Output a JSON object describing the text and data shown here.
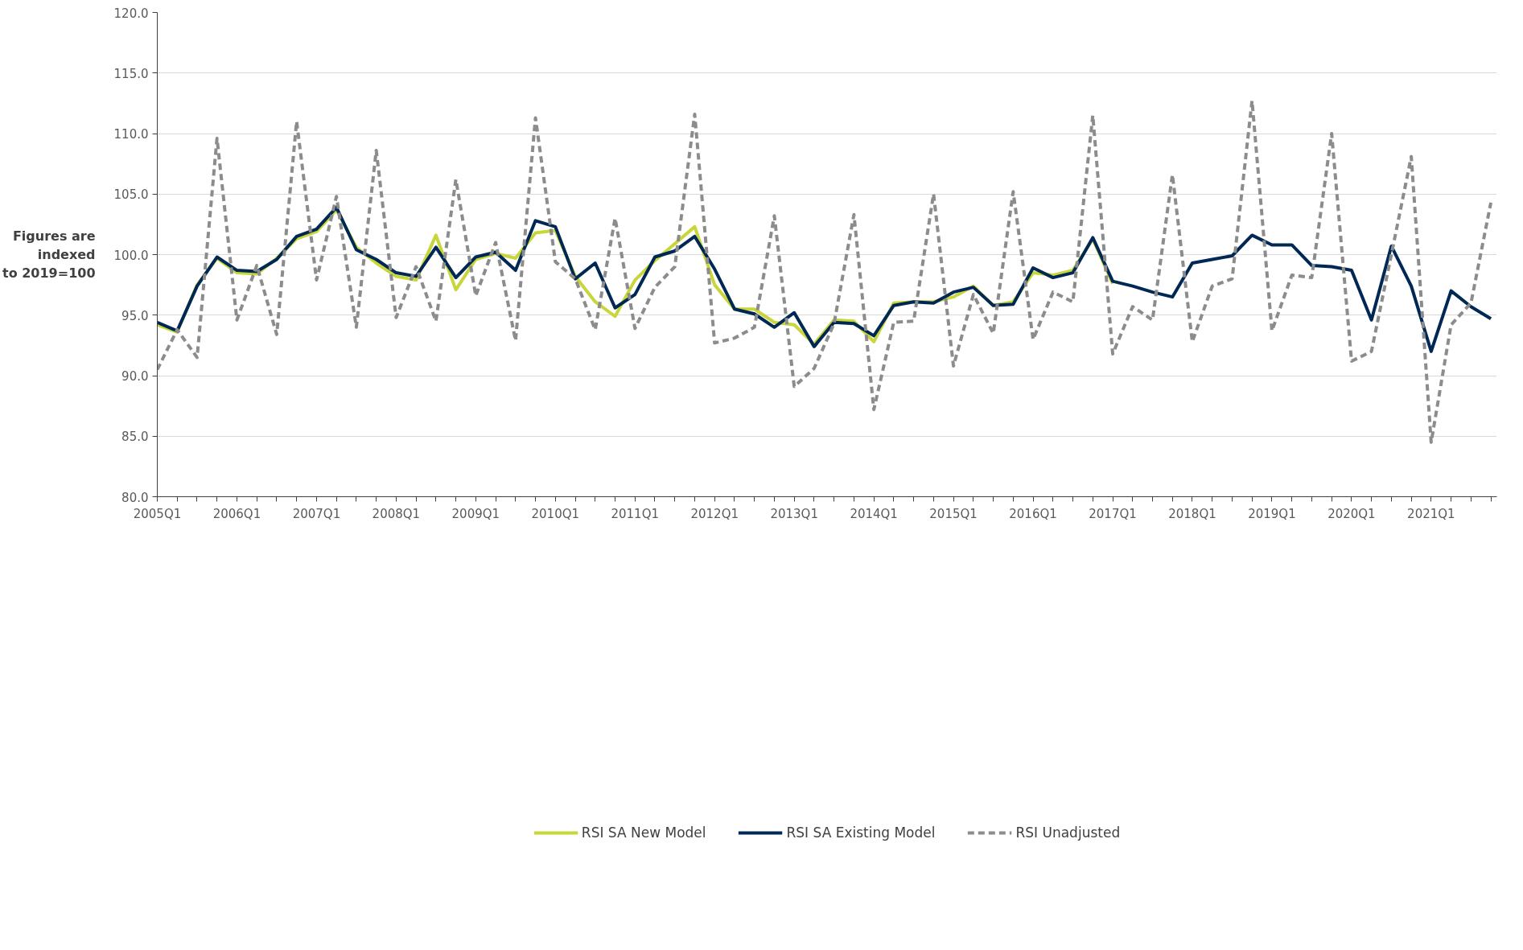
{
  "chart_data": {
    "type": "line",
    "ylabel": "Figures are\nindexed\nto 2019=100",
    "categories": [
      "2005Q1",
      null,
      null,
      null,
      "2006Q1",
      null,
      null,
      null,
      "2007Q1",
      null,
      null,
      null,
      "2008Q1",
      null,
      null,
      null,
      "2009Q1",
      null,
      null,
      null,
      "2010Q1",
      null,
      null,
      null,
      "2011Q1",
      null,
      null,
      null,
      "2012Q1",
      null,
      null,
      null,
      "2013Q1",
      null,
      null,
      null,
      "2014Q1",
      null,
      null,
      null,
      "2015Q1",
      null,
      null,
      null,
      "2016Q1",
      null,
      null,
      null,
      "2017Q1",
      null,
      null,
      null,
      "2018Q1",
      null,
      null,
      null,
      "2019Q1",
      null,
      null,
      null,
      "2020Q1",
      null,
      null,
      null,
      "2021Q1",
      null,
      null,
      null
    ],
    "series": [
      {
        "name": "RSI SA New Model",
        "color": "#c8d63a",
        "line_style": "solid",
        "values": [
          94.2,
          93.6,
          97.5,
          99.7,
          98.5,
          98.4,
          99.7,
          101.3,
          101.9,
          103.7,
          100.6,
          99.3,
          98.2,
          97.9,
          101.6,
          97.1,
          99.6,
          100.1,
          99.7,
          101.8,
          102.0,
          98.2,
          96.1,
          94.9,
          97.9,
          99.5,
          100.9,
          102.3,
          97.5,
          95.5,
          95.5,
          94.4,
          94.2,
          92.6,
          94.6,
          94.5,
          92.8,
          96.0,
          96.1,
          96.1,
          96.5,
          97.4,
          95.8,
          96.1,
          98.5,
          98.3,
          98.7,
          101.3,
          97.6,
          null,
          null,
          null,
          null,
          null,
          null,
          null,
          null,
          null,
          null,
          null,
          null,
          null,
          null,
          null,
          null,
          null,
          null,
          null
        ]
      },
      {
        "name": "RSI SA Existing Model",
        "color": "#002855",
        "line_style": "solid",
        "values": [
          94.4,
          93.7,
          97.4,
          99.8,
          98.7,
          98.6,
          99.6,
          101.5,
          102.1,
          103.9,
          100.4,
          99.6,
          98.5,
          98.2,
          100.6,
          98.1,
          99.8,
          100.2,
          98.7,
          102.8,
          102.3,
          98.0,
          99.3,
          95.6,
          96.7,
          99.8,
          100.3,
          101.5,
          98.8,
          95.5,
          95.1,
          94.0,
          95.2,
          92.4,
          94.4,
          94.3,
          93.3,
          95.8,
          96.1,
          96.0,
          96.9,
          97.3,
          95.8,
          95.9,
          98.9,
          98.1,
          98.5,
          101.4,
          97.8,
          97.4,
          96.9,
          96.5,
          99.3,
          99.6,
          99.9,
          101.6,
          100.8,
          100.8,
          99.1,
          99.0,
          98.7,
          94.6,
          100.7,
          97.4,
          92.0,
          97.0,
          95.7,
          94.7
        ]
      },
      {
        "name": "RSI Unadjusted",
        "color": "#8c8c8c",
        "line_style": "dashed",
        "values": [
          90.5,
          93.8,
          91.5,
          109.6,
          94.6,
          99.1,
          93.4,
          111.0,
          97.9,
          104.8,
          94.0,
          108.6,
          94.8,
          99.0,
          94.5,
          106.2,
          96.6,
          101.0,
          92.9,
          111.3,
          99.4,
          98.0,
          93.8,
          103.0,
          93.9,
          97.3,
          99.0,
          111.6,
          92.7,
          93.1,
          94.0,
          103.2,
          89.1,
          90.6,
          94.3,
          103.3,
          87.2,
          94.4,
          94.5,
          105.0,
          90.8,
          96.7,
          93.5,
          105.2,
          93.0,
          96.9,
          96.1,
          111.5,
          91.8,
          95.7,
          94.6,
          106.6,
          92.8,
          97.4,
          98.0,
          112.7,
          93.7,
          98.3,
          98.1,
          110.0,
          91.2,
          92.0,
          100.0,
          108.1,
          84.5,
          94.2,
          96.0,
          104.3
        ]
      }
    ],
    "ylim": [
      80,
      120
    ],
    "yticks": [
      {
        "value": 80,
        "label": "80.0"
      },
      {
        "value": 85,
        "label": "85.0"
      },
      {
        "value": 90,
        "label": "90.0"
      },
      {
        "value": 95,
        "label": "95.0"
      },
      {
        "value": 100,
        "label": "100.0"
      },
      {
        "value": 105,
        "label": "105.0"
      },
      {
        "value": 110,
        "label": "110.0"
      },
      {
        "value": 115,
        "label": "115.0"
      },
      {
        "value": 120,
        "label": "120.0"
      }
    ],
    "grid": "y",
    "legend": "bottom"
  }
}
